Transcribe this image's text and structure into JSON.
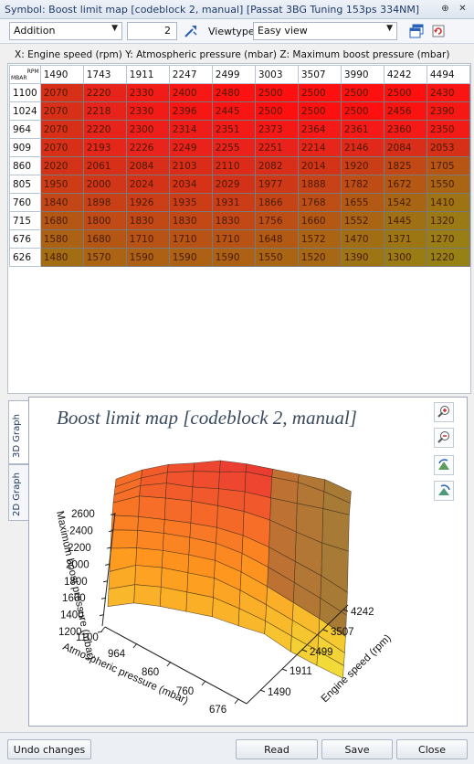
{
  "window": {
    "title": "Symbol: Boost limit map [codeblock 2, manual] [Passat 3BG Tuning 153ps 334NM]",
    "pin_glyph": "⊕",
    "close_glyph": "✕"
  },
  "toolbar": {
    "operation": "Addition",
    "operand": "2",
    "viewtype_label": "Viewtype",
    "viewtype": "Easy view"
  },
  "map": {
    "description": "X: Engine speed (rpm) Y: Atmospheric pressure (mbar) Z: Maximum boost pressure (mbar)",
    "corner_x": "RPM",
    "corner_y": "MBAR",
    "x_axis": [
      "1490",
      "1743",
      "1911",
      "2247",
      "2499",
      "3003",
      "3507",
      "3990",
      "4242",
      "4494"
    ],
    "rows": [
      {
        "y": "1100",
        "cells": [
          "2070",
          "2220",
          "2330",
          "2400",
          "2480",
          "2500",
          "2500",
          "2500",
          "2500",
          "2430"
        ]
      },
      {
        "y": "1024",
        "cells": [
          "2070",
          "2218",
          "2330",
          "2396",
          "2445",
          "2500",
          "2500",
          "2500",
          "2456",
          "2390"
        ]
      },
      {
        "y": "964",
        "cells": [
          "2070",
          "2220",
          "2300",
          "2314",
          "2351",
          "2373",
          "2364",
          "2361",
          "2360",
          "2350"
        ]
      },
      {
        "y": "909",
        "cells": [
          "2070",
          "2193",
          "2226",
          "2249",
          "2255",
          "2251",
          "2214",
          "2146",
          "2084",
          "2053"
        ]
      },
      {
        "y": "860",
        "cells": [
          "2020",
          "2061",
          "2084",
          "2103",
          "2110",
          "2082",
          "2014",
          "1920",
          "1825",
          "1705"
        ]
      },
      {
        "y": "805",
        "cells": [
          "1950",
          "2000",
          "2024",
          "2034",
          "2029",
          "1977",
          "1888",
          "1782",
          "1672",
          "1550"
        ]
      },
      {
        "y": "760",
        "cells": [
          "1840",
          "1898",
          "1926",
          "1935",
          "1931",
          "1866",
          "1768",
          "1655",
          "1542",
          "1410"
        ]
      },
      {
        "y": "715",
        "cells": [
          "1680",
          "1800",
          "1830",
          "1830",
          "1830",
          "1756",
          "1660",
          "1552",
          "1445",
          "1320"
        ]
      },
      {
        "y": "676",
        "cells": [
          "1580",
          "1680",
          "1710",
          "1710",
          "1710",
          "1648",
          "1572",
          "1470",
          "1371",
          "1270"
        ]
      },
      {
        "y": "626",
        "cells": [
          "1480",
          "1570",
          "1590",
          "1590",
          "1590",
          "1550",
          "1520",
          "1390",
          "1300",
          "1220"
        ]
      }
    ]
  },
  "graph": {
    "tabs": [
      "3D Graph",
      "2D Graph"
    ],
    "title": "Boost limit map [codeblock 2, manual]",
    "z_label": "Maximum boost pressure (mbar)",
    "y_label": "Atmospheric pressure (mbar)",
    "x_label": "Engine speed (rpm)",
    "z_ticks": [
      "2600",
      "2400",
      "2200",
      "2000",
      "1800",
      "1600",
      "1400",
      "1200"
    ],
    "y_ticks": [
      "1100",
      "964",
      "860",
      "760",
      "676"
    ],
    "x_ticks": [
      "1490",
      "1911",
      "2499",
      "3507",
      "4242"
    ]
  },
  "chart_data": {
    "type": "heatmap",
    "title": "Boost limit map [codeblock 2, manual]",
    "xlabel": "Engine speed (rpm)",
    "ylabel": "Atmospheric pressure (mbar)",
    "zlabel": "Maximum boost pressure (mbar)",
    "x": [
      1490,
      1743,
      1911,
      2247,
      2499,
      3003,
      3507,
      3990,
      4242,
      4494
    ],
    "y": [
      1100,
      1024,
      964,
      909,
      860,
      805,
      760,
      715,
      676,
      626
    ],
    "zlim": [
      1200,
      2600
    ],
    "z": [
      [
        2070,
        2220,
        2330,
        2400,
        2480,
        2500,
        2500,
        2500,
        2500,
        2430
      ],
      [
        2070,
        2218,
        2330,
        2396,
        2445,
        2500,
        2500,
        2500,
        2456,
        2390
      ],
      [
        2070,
        2220,
        2300,
        2314,
        2351,
        2373,
        2364,
        2361,
        2360,
        2350
      ],
      [
        2070,
        2193,
        2226,
        2249,
        2255,
        2251,
        2214,
        2146,
        2084,
        2053
      ],
      [
        2020,
        2061,
        2084,
        2103,
        2110,
        2082,
        2014,
        1920,
        1825,
        1705
      ],
      [
        1950,
        2000,
        2024,
        2034,
        2029,
        1977,
        1888,
        1782,
        1672,
        1550
      ],
      [
        1840,
        1898,
        1926,
        1935,
        1931,
        1866,
        1768,
        1655,
        1542,
        1410
      ],
      [
        1680,
        1800,
        1830,
        1830,
        1830,
        1756,
        1660,
        1552,
        1445,
        1320
      ],
      [
        1580,
        1680,
        1710,
        1710,
        1710,
        1648,
        1572,
        1470,
        1371,
        1270
      ],
      [
        1480,
        1570,
        1590,
        1590,
        1590,
        1550,
        1520,
        1390,
        1300,
        1220
      ]
    ]
  },
  "buttons": {
    "undo": "Undo changes",
    "read": "Read",
    "save": "Save",
    "close": "Close"
  },
  "colors": {
    "high": "#ff1a1a",
    "mid": "#c65a14",
    "low": "#a08a14"
  }
}
